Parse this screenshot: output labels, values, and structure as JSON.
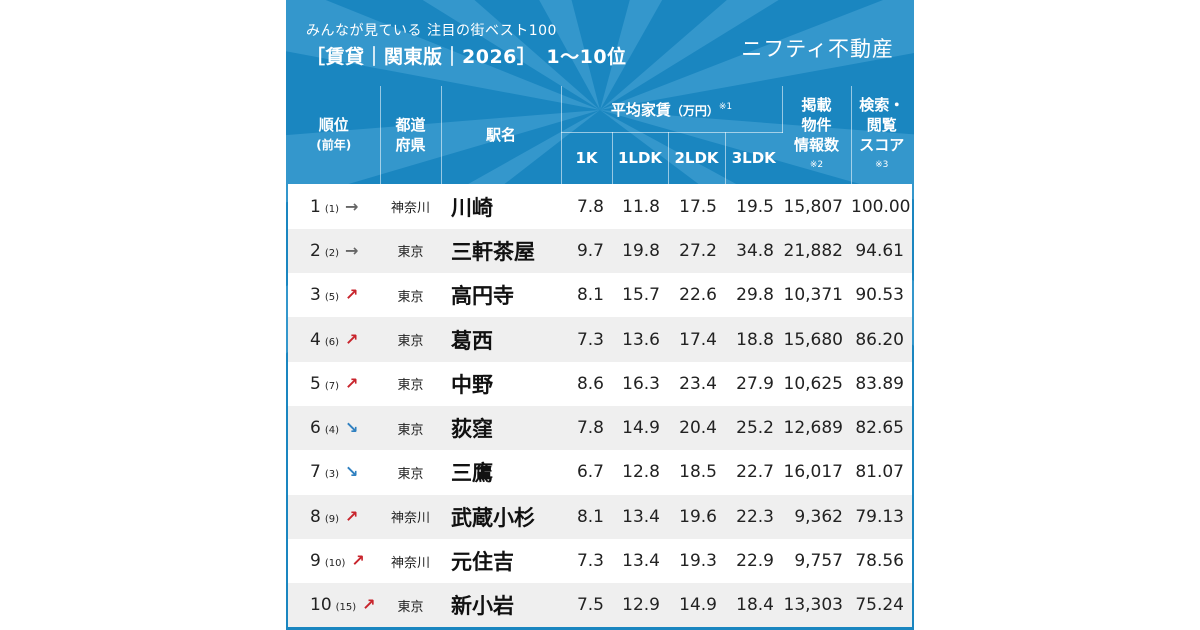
{
  "header": {
    "subtitle": "みんなが見ている 注目の街ベスト100",
    "title": "［賃貸｜関東版｜2026］　1〜10位",
    "brand": "ニフティ不動産"
  },
  "columns": {
    "rank": "順位",
    "rank_prev": "(前年)",
    "pref_line1": "都道",
    "pref_line2": "府県",
    "station": "駅名",
    "rent": "平均家賃",
    "rent_unit": "（万円）",
    "rent_note": "※1",
    "k1": "1K",
    "ldk1": "1LDK",
    "ldk2": "2LDK",
    "ldk3": "3LDK",
    "listings_line1": "掲載",
    "listings_line2": "物件",
    "listings_line3": "情報数",
    "listings_note": "※2",
    "score_line1": "検索・",
    "score_line2": "閲覧",
    "score_line3": "スコア",
    "score_note": "※3"
  },
  "rows": [
    {
      "rank": "1",
      "prev": "(1)",
      "trend": "flat",
      "arrow": "→",
      "pref": "神奈川",
      "station": "川崎",
      "k1": "7.8",
      "ldk1": "11.8",
      "ldk2": "17.5",
      "ldk3": "19.5",
      "listings": "15,807",
      "score": "100.00"
    },
    {
      "rank": "2",
      "prev": "(2)",
      "trend": "flat",
      "arrow": "→",
      "pref": "東京",
      "station": "三軒茶屋",
      "k1": "9.7",
      "ldk1": "19.8",
      "ldk2": "27.2",
      "ldk3": "34.8",
      "listings": "21,882",
      "score": "94.61"
    },
    {
      "rank": "3",
      "prev": "(5)",
      "trend": "up",
      "arrow": "↗",
      "pref": "東京",
      "station": "高円寺",
      "k1": "8.1",
      "ldk1": "15.7",
      "ldk2": "22.6",
      "ldk3": "29.8",
      "listings": "10,371",
      "score": "90.53"
    },
    {
      "rank": "4",
      "prev": "(6)",
      "trend": "up",
      "arrow": "↗",
      "pref": "東京",
      "station": "葛西",
      "k1": "7.3",
      "ldk1": "13.6",
      "ldk2": "17.4",
      "ldk3": "18.8",
      "listings": "15,680",
      "score": "86.20"
    },
    {
      "rank": "5",
      "prev": "(7)",
      "trend": "up",
      "arrow": "↗",
      "pref": "東京",
      "station": "中野",
      "k1": "8.6",
      "ldk1": "16.3",
      "ldk2": "23.4",
      "ldk3": "27.9",
      "listings": "10,625",
      "score": "83.89"
    },
    {
      "rank": "6",
      "prev": "(4)",
      "trend": "down",
      "arrow": "↘",
      "pref": "東京",
      "station": "荻窪",
      "k1": "7.8",
      "ldk1": "14.9",
      "ldk2": "20.4",
      "ldk3": "25.2",
      "listings": "12,689",
      "score": "82.65"
    },
    {
      "rank": "7",
      "prev": "(3)",
      "trend": "down",
      "arrow": "↘",
      "pref": "東京",
      "station": "三鷹",
      "k1": "6.7",
      "ldk1": "12.8",
      "ldk2": "18.5",
      "ldk3": "22.7",
      "listings": "16,017",
      "score": "81.07"
    },
    {
      "rank": "8",
      "prev": "(9)",
      "trend": "up",
      "arrow": "↗",
      "pref": "神奈川",
      "station": "武蔵小杉",
      "k1": "8.1",
      "ldk1": "13.4",
      "ldk2": "19.6",
      "ldk3": "22.3",
      "listings": "9,362",
      "score": "79.13"
    },
    {
      "rank": "9",
      "prev": "(10)",
      "trend": "up",
      "arrow": "↗",
      "pref": "神奈川",
      "station": "元住吉",
      "k1": "7.3",
      "ldk1": "13.4",
      "ldk2": "19.3",
      "ldk3": "22.9",
      "listings": "9,757",
      "score": "78.56"
    },
    {
      "rank": "10",
      "prev": "(15)",
      "trend": "up",
      "arrow": "↗",
      "pref": "東京",
      "station": "新小岩",
      "k1": "7.5",
      "ldk1": "12.9",
      "ldk2": "14.9",
      "ldk3": "18.4",
      "listings": "13,303",
      "score": "75.24"
    }
  ],
  "colors": {
    "background": "#1a86c0",
    "up": "#c8242c",
    "down": "#2f80c0",
    "flat": "#666666"
  }
}
